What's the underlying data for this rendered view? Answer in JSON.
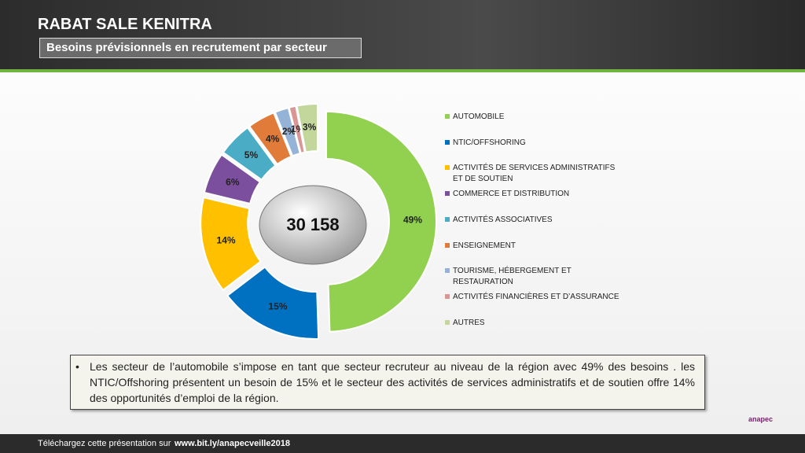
{
  "header": {
    "title": "RABAT SALE KENITRA",
    "subtitle": "Besoins prévisionnels en recrutement par secteur"
  },
  "chart_data": {
    "type": "donut",
    "total_label": "30 158",
    "categories": [
      "AUTOMOBILE",
      "NTIC/OFFSHORING",
      "ACTIVITÉS DE SERVICES ADMINISTRATIFS ET DE SOUTIEN",
      "COMMERCE ET DISTRIBUTION",
      "ACTIVITÉS ASSOCIATIVES",
      "ENSEIGNEMENT",
      "TOURISME, HÉBERGEMENT ET RESTAURATION",
      "ACTIVITÉS FINANCIÈRES ET D’ASSURANCE",
      "AUTRES"
    ],
    "values": [
      49,
      15,
      14,
      6,
      5,
      4,
      2,
      1,
      3
    ],
    "value_labels": [
      "49%",
      "15%",
      "14%",
      "6%",
      "5%",
      "4%",
      "2%",
      "1%",
      "3%"
    ],
    "colors": [
      "#92d050",
      "#0070c0",
      "#ffc000",
      "#7b4f9d",
      "#4bacc6",
      "#e07b39",
      "#95b3d7",
      "#d99694",
      "#c3d69b"
    ]
  },
  "note": "Les secteur de l’automobile s’impose en tant que secteur recruteur au niveau de la région avec  49% des besoins . les  NTIC/Offshoring  présentent un besoin de 15%  et le secteur des activités de services administratifs et de soutien offre 14% des opportunités  d’emploi de la région.",
  "footer": {
    "text": "Téléchargez cette présentation sur",
    "link": "www.bit.ly/anapecveille2018",
    "logo": "anapec"
  }
}
